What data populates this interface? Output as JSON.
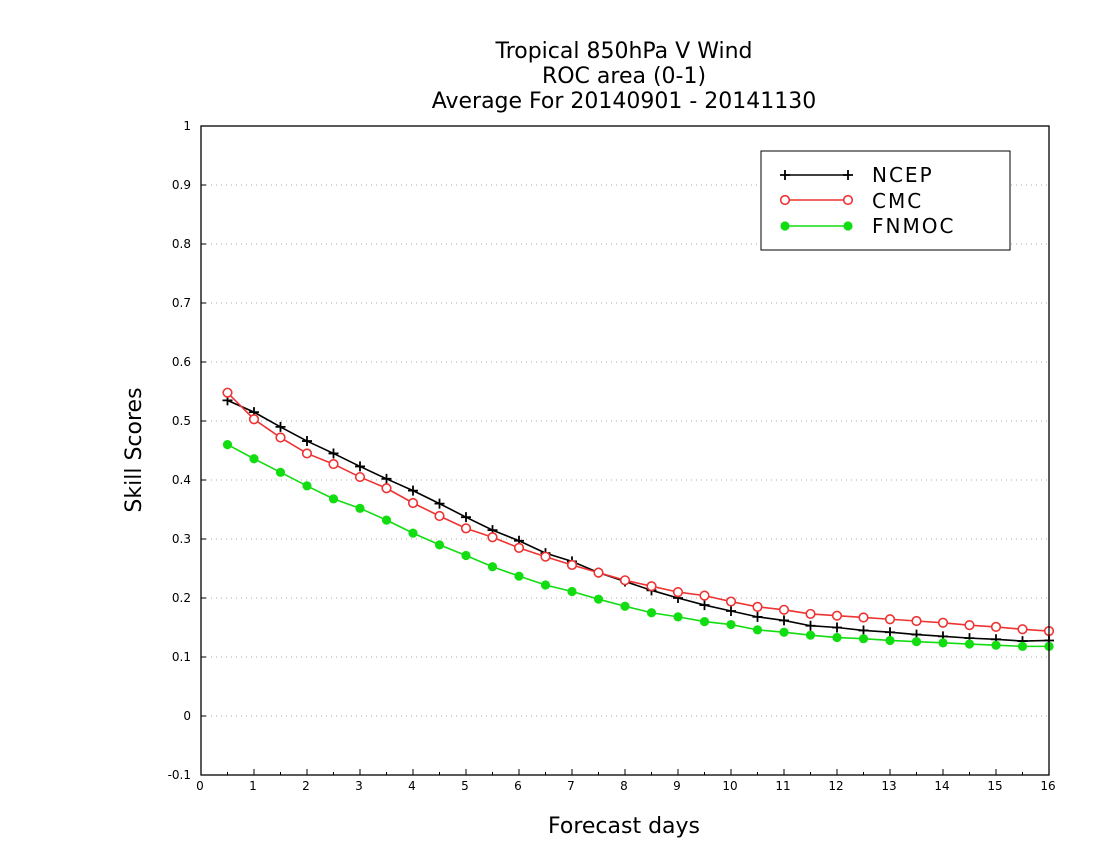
{
  "chart_data": {
    "type": "line",
    "title_lines": [
      "Tropical 850hPa V Wind",
      "ROC area (0-1)",
      "Average For 20140901 - 20141130"
    ],
    "xlabel": "Forecast days",
    "ylabel": "Skill Scores",
    "xlim": [
      0,
      16
    ],
    "ylim": [
      -0.1,
      1
    ],
    "x_ticks": [
      0,
      1,
      2,
      3,
      4,
      5,
      6,
      7,
      8,
      9,
      10,
      11,
      12,
      13,
      14,
      15,
      16
    ],
    "x_tick_labels": [
      "0",
      "1",
      "2",
      "3",
      "4",
      "5",
      "6",
      "7",
      "8",
      "9",
      "10",
      "11",
      "12",
      "13",
      "14",
      "15",
      "16"
    ],
    "y_ticks": [
      -0.1,
      0,
      0.1,
      0.2,
      0.3,
      0.4,
      0.5,
      0.6,
      0.7,
      0.8,
      0.9,
      1
    ],
    "y_tick_labels": [
      "-0.1",
      "0",
      "0.1",
      "0.2",
      "0.3",
      "0.4",
      "0.5",
      "0.6",
      "0.7",
      "0.8",
      "0.9",
      "1"
    ],
    "grid": "horizontal dotted",
    "legend_position": "top-right",
    "x": [
      0.5,
      1,
      1.5,
      2,
      2.5,
      3,
      3.5,
      4,
      4.5,
      5,
      5.5,
      6,
      6.5,
      7,
      7.5,
      8,
      8.5,
      9,
      9.5,
      10,
      10.5,
      11,
      11.5,
      12,
      12.5,
      13,
      13.5,
      14,
      14.5,
      15,
      15.5,
      16
    ],
    "series": [
      {
        "name": "NCEP",
        "color": "#000000",
        "marker": "plus",
        "values": [
          0.535,
          0.515,
          0.49,
          0.466,
          0.445,
          0.423,
          0.402,
          0.382,
          0.36,
          0.337,
          0.315,
          0.297,
          0.276,
          0.262,
          0.243,
          0.228,
          0.213,
          0.2,
          0.188,
          0.178,
          0.168,
          0.162,
          0.153,
          0.15,
          0.145,
          0.142,
          0.138,
          0.135,
          0.132,
          0.13,
          0.127,
          0.128
        ]
      },
      {
        "name": "CMC",
        "color": "#ee3333",
        "marker": "open-circle",
        "values": [
          0.548,
          0.503,
          0.472,
          0.445,
          0.427,
          0.405,
          0.386,
          0.361,
          0.339,
          0.318,
          0.303,
          0.285,
          0.27,
          0.256,
          0.243,
          0.23,
          0.22,
          0.21,
          0.204,
          0.194,
          0.185,
          0.18,
          0.173,
          0.17,
          0.167,
          0.164,
          0.161,
          0.158,
          0.154,
          0.151,
          0.147,
          0.144
        ]
      },
      {
        "name": "FNMOC",
        "color": "#11dd11",
        "marker": "filled-circle",
        "values": [
          0.46,
          0.436,
          0.413,
          0.39,
          0.368,
          0.352,
          0.332,
          0.31,
          0.29,
          0.272,
          0.253,
          0.237,
          0.222,
          0.211,
          0.198,
          0.186,
          0.175,
          0.168,
          0.16,
          0.155,
          0.146,
          0.142,
          0.137,
          0.133,
          0.131,
          0.128,
          0.126,
          0.124,
          0.122,
          0.12,
          0.118,
          0.118
        ]
      }
    ]
  }
}
